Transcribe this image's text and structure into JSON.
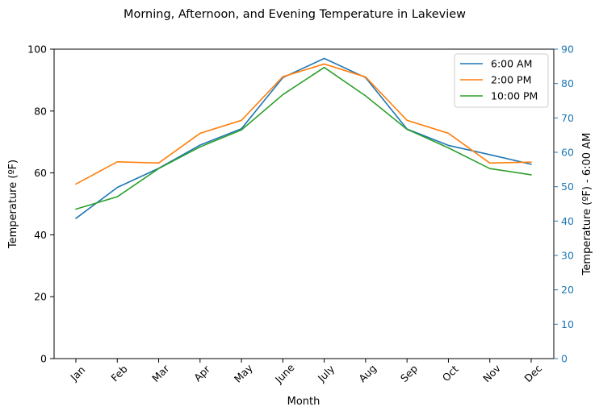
{
  "chart_data": {
    "type": "line",
    "title": "Morning, Afternoon, and Evening Temperature in Lakeview",
    "xlabel": "Month",
    "ylabel": "Temperature (ºF)",
    "ylabel_right": "Temperature (ºF) - 6:00 AM",
    "categories": [
      "Jan",
      "Feb",
      "Mar",
      "Apr",
      "May",
      "June",
      "July",
      "Aug",
      "Sep",
      "Oct",
      "Nov",
      "Dec"
    ],
    "ylim": [
      0,
      100
    ],
    "ylim_right": [
      0,
      90
    ],
    "yticks": [
      "0",
      "20",
      "40",
      "60",
      "80",
      "100"
    ],
    "yticks_right": [
      "0",
      "10",
      "20",
      "30",
      "40",
      "50",
      "60",
      "70",
      "80",
      "90"
    ],
    "grid": false,
    "legend_position": "top-right",
    "right_axis_color": "#1f77b4",
    "series": [
      {
        "name": "6:00 AM",
        "color": "#1f77b4",
        "values": [
          45.3,
          55.3,
          61.5,
          69.0,
          74.3,
          90.8,
          97.0,
          90.8,
          74.2,
          68.9,
          65.9,
          62.8
        ]
      },
      {
        "name": "2:00 PM",
        "color": "#ff7f0e",
        "values": [
          56.4,
          63.6,
          63.2,
          72.8,
          77.0,
          91.1,
          95.2,
          91.0,
          77.0,
          72.8,
          63.2,
          63.5
        ]
      },
      {
        "name": "10:00 PM",
        "color": "#2ca02c",
        "values": [
          48.3,
          52.3,
          61.4,
          68.4,
          73.9,
          85.3,
          94.1,
          84.9,
          74.1,
          68.1,
          61.4,
          59.4
        ]
      }
    ]
  }
}
